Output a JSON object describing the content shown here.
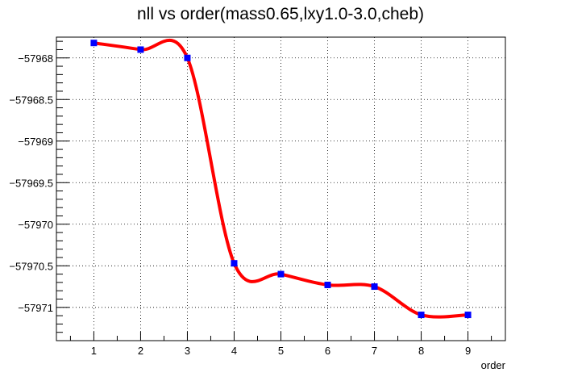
{
  "chart_data": {
    "type": "line",
    "title": "nll vs order(mass0.65,lxy1.0-3.0,cheb)",
    "xlabel": "order",
    "ylabel": "",
    "xlim": [
      0.2,
      9.8
    ],
    "ylim": [
      -57971.4,
      -57967.75
    ],
    "x_ticks": [
      1,
      2,
      3,
      4,
      5,
      6,
      7,
      8,
      9
    ],
    "y_ticks": [
      -57968,
      -57968.5,
      -57969,
      -57969.5,
      -57970,
      -57970.5,
      -57971
    ],
    "x_tick_labels": [
      "1",
      "2",
      "3",
      "4",
      "5",
      "6",
      "7",
      "8",
      "9"
    ],
    "y_tick_labels": [
      "−57968",
      "−57968.5",
      "−57969",
      "−57969.5",
      "−57970",
      "−57970.5",
      "−57971"
    ],
    "grid": true,
    "series": [
      {
        "x": [
          1,
          2,
          3,
          4,
          5,
          6,
          7,
          8,
          9
        ],
        "y": [
          -57967.82,
          -57967.9,
          -57968.0,
          -57970.47,
          -57970.6,
          -57970.73,
          -57970.75,
          -57971.09,
          -57971.09
        ],
        "line_color": "#ff0000",
        "marker_color": "#0000ff",
        "marker": "square",
        "smooth": true
      }
    ]
  }
}
